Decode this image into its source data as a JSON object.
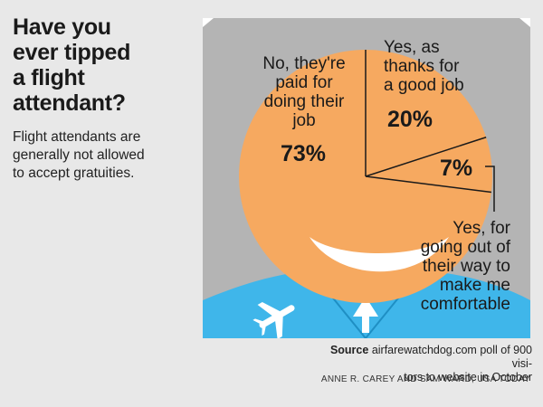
{
  "headline": "Have you\never tipped\na flight\nattendant?",
  "subtitle": "Flight attendants are\ngenerally not allowed\nto accept gratuities.",
  "chart_data": {
    "type": "pie",
    "slices": [
      {
        "label": "No, they're\npaid for\ndoing their\njob",
        "value": 73,
        "value_label": "73%"
      },
      {
        "label": "Yes, as\nthanks for\na good job",
        "value": 20,
        "value_label": "20%"
      },
      {
        "label": "Yes, for\ngoing out of\ntheir way to\nmake me\ncomfortable",
        "value": 7,
        "value_label": "7%"
      }
    ]
  },
  "source_label": "Source",
  "source_text": "airfarewatchdog.com poll of 900 visi-\ntors to website in October",
  "credit": "ANNE R. CAREY AND SAM WARD, USA TODAY",
  "colors": {
    "face": "#f6a960",
    "hair": "#b4b4b4",
    "uniform": "#3fb6ea",
    "background": "#e8e8e8"
  }
}
